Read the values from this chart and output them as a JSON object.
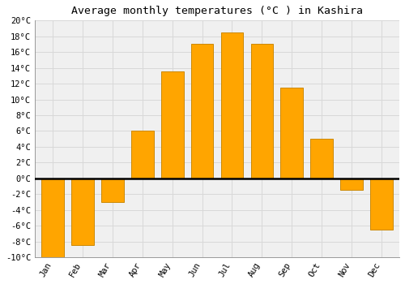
{
  "title": "Average monthly temperatures (°C ) in Kashira",
  "months": [
    "Jan",
    "Feb",
    "Mar",
    "Apr",
    "May",
    "Jun",
    "Jul",
    "Aug",
    "Sep",
    "Oct",
    "Nov",
    "Dec"
  ],
  "values": [
    -10,
    -8.5,
    -3,
    6,
    13.5,
    17,
    18.5,
    17,
    11.5,
    5,
    -1.5,
    -6.5
  ],
  "bar_color": "#FFA500",
  "bar_edge_color": "#CC8800",
  "ylim": [
    -10,
    20
  ],
  "yticks": [
    -10,
    -8,
    -6,
    -4,
    -2,
    0,
    2,
    4,
    6,
    8,
    10,
    12,
    14,
    16,
    18,
    20
  ],
  "ytick_labels": [
    "-10°C",
    "-8°C",
    "-6°C",
    "-4°C",
    "-2°C",
    "0°C",
    "2°C",
    "4°C",
    "6°C",
    "8°C",
    "10°C",
    "12°C",
    "14°C",
    "16°C",
    "18°C",
    "20°C"
  ],
  "background_color": "#ffffff",
  "plot_bg_color": "#f0f0f0",
  "grid_color": "#d8d8d8",
  "title_fontsize": 9.5,
  "tick_fontsize": 7.5,
  "bar_width": 0.75
}
